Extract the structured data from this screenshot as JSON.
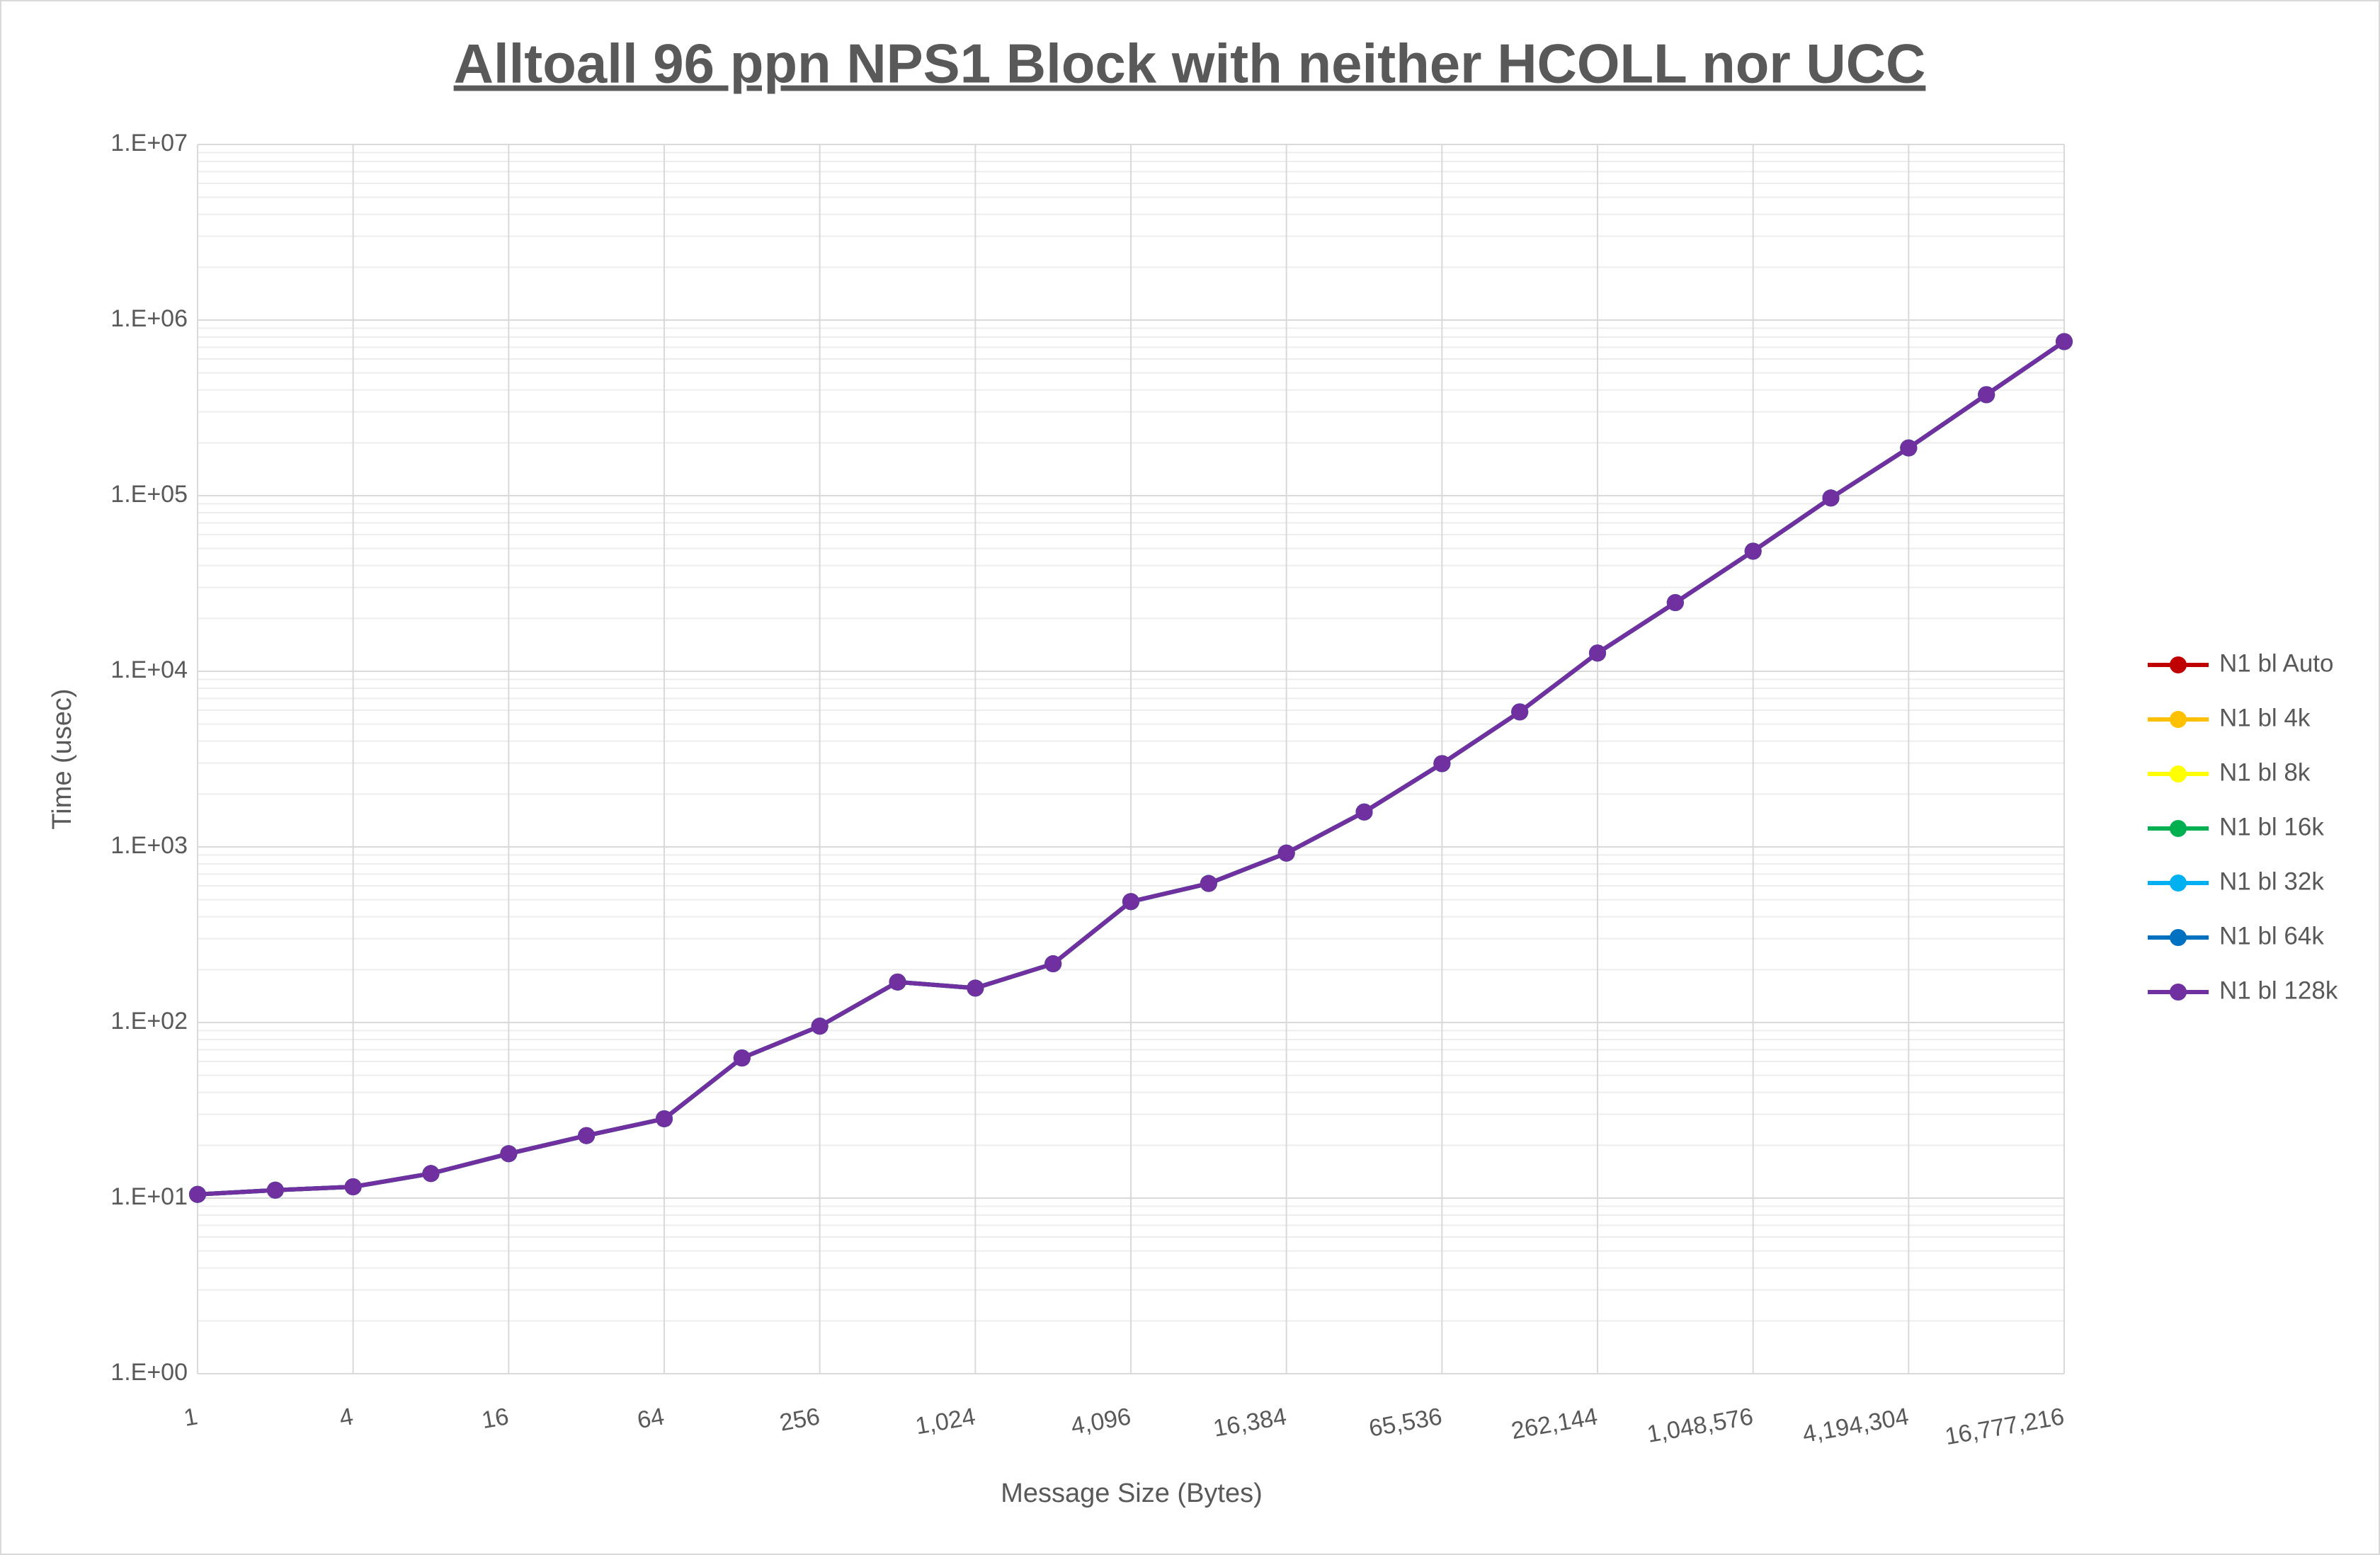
{
  "chart_data": {
    "type": "line",
    "title": "Alltoall 96 ppn NPS1 Block with neither HCOLL nor UCC",
    "x_label": "Message Size (Bytes)",
    "y_label": "Time (usec)",
    "x": [
      1,
      2,
      4,
      8,
      16,
      32,
      64,
      128,
      256,
      512,
      1024,
      2048,
      4096,
      8192,
      16384,
      32768,
      65536,
      131072,
      262144,
      524288,
      1048576,
      2097152,
      4194304,
      8388608,
      16777216
    ],
    "series": [
      {
        "name": "N1 bl Auto",
        "color": "#c00000",
        "values": [
          10.5,
          11.1,
          11.6,
          13.8,
          17.9,
          22.7,
          28.3,
          62.8,
          95.3,
          170,
          157,
          216,
          488,
          619,
          922,
          1580,
          2980,
          5870,
          12700,
          24600,
          48300,
          97000,
          187000,
          376000,
          754000
        ]
      },
      {
        "name": "N1 bl 4k",
        "color": "#ffc000",
        "values": [
          10.5,
          11.1,
          11.6,
          13.8,
          17.9,
          22.7,
          28.3,
          62.8,
          95.3,
          170,
          157,
          216,
          488,
          619,
          922,
          1580,
          2980,
          5870,
          12700,
          24600,
          48300,
          97000,
          187000,
          376000,
          754000
        ]
      },
      {
        "name": "N1 bl 8k",
        "color": "#ffff00",
        "values": [
          10.5,
          11.1,
          11.6,
          13.8,
          17.9,
          22.7,
          28.3,
          62.8,
          95.3,
          170,
          157,
          216,
          488,
          619,
          922,
          1580,
          2980,
          5870,
          12700,
          24600,
          48300,
          97000,
          187000,
          376000,
          754000
        ]
      },
      {
        "name": "N1 bl 16k",
        "color": "#00b050",
        "values": [
          10.5,
          11.1,
          11.6,
          13.8,
          17.9,
          22.7,
          28.3,
          62.8,
          95.3,
          170,
          157,
          216,
          488,
          619,
          922,
          1580,
          2980,
          5870,
          12700,
          24600,
          48300,
          97000,
          187000,
          376000,
          754000
        ]
      },
      {
        "name": "N1 bl 32k",
        "color": "#00b0f0",
        "values": [
          10.5,
          11.1,
          11.6,
          13.8,
          17.9,
          22.7,
          28.3,
          62.8,
          95.3,
          170,
          157,
          216,
          488,
          619,
          922,
          1580,
          2980,
          5870,
          12700,
          24600,
          48300,
          97000,
          187000,
          376000,
          754000
        ]
      },
      {
        "name": "N1 bl 64k",
        "color": "#0070c0",
        "values": [
          10.5,
          11.1,
          11.6,
          13.8,
          17.9,
          22.7,
          28.3,
          62.8,
          95.3,
          170,
          157,
          216,
          488,
          619,
          922,
          1580,
          2980,
          5870,
          12700,
          24600,
          48300,
          97000,
          187000,
          376000,
          754000
        ]
      },
      {
        "name": "N1 bl 128k",
        "color": "#7030a0",
        "values": [
          10.5,
          11.1,
          11.6,
          13.8,
          17.9,
          22.7,
          28.3,
          62.8,
          95.3,
          170,
          157,
          216,
          488,
          619,
          922,
          1580,
          2980,
          5870,
          12700,
          24600,
          48300,
          97000,
          187000,
          376000,
          754000
        ]
      }
    ],
    "xlim": [
      1,
      16777216
    ],
    "xticks": [
      1,
      4,
      16,
      64,
      256,
      {
        "value": 1024,
        "label": "1,024"
      },
      {
        "value": 4096,
        "label": "4,096"
      },
      {
        "value": 16384,
        "label": "16,384"
      },
      {
        "value": 65536,
        "label": "65,536"
      },
      {
        "value": 262144,
        "label": "262,144"
      },
      {
        "value": 1048576,
        "label": "1,048,576"
      },
      {
        "value": 4194304,
        "label": "4,194,304"
      },
      {
        "value": 16777216,
        "label": "16,777,216"
      }
    ],
    "xscale": "log",
    "ylim": [
      1,
      10000000
    ],
    "yticks": [
      {
        "value": 1,
        "label": "1.E+00"
      },
      {
        "value": 10,
        "label": "1.E+01"
      },
      {
        "value": 100,
        "label": "1.E+02"
      },
      {
        "value": 1000,
        "label": "1.E+03"
      },
      {
        "value": 10000,
        "label": "1.E+04"
      },
      {
        "value": 100000,
        "label": "1.E+05"
      },
      {
        "value": 1000000,
        "label": "1.E+06"
      },
      {
        "value": 10000000,
        "label": "1.E+07"
      }
    ],
    "yscale": "log",
    "grid": true,
    "minor_grid": true,
    "markers": true,
    "legend": "right"
  }
}
